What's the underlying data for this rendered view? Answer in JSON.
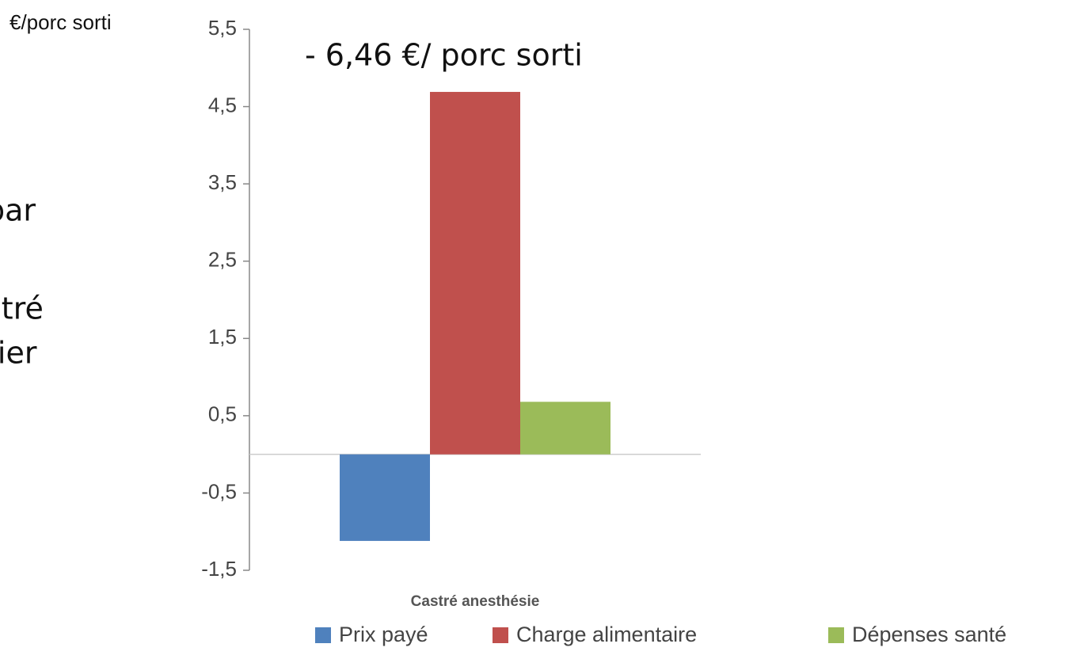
{
  "chart_data": {
    "type": "bar",
    "y_label": "€/porc sorti",
    "annotation": "- 6,46 €/ porc sorti",
    "side_text": [
      "par",
      "stré",
      "tier"
    ],
    "categories": [
      "Castré anesthésie"
    ],
    "series": [
      {
        "name": "Prix payé",
        "color": "#4f81bd",
        "values": [
          -1.12
        ]
      },
      {
        "name": "Charge alimentaire",
        "color": "#c0504d",
        "values": [
          4.69
        ]
      },
      {
        "name": "Dépenses santé",
        "color": "#9bbb59",
        "values": [
          0.68
        ]
      }
    ],
    "ylim": [
      -1.5,
      5.5
    ],
    "yticks": [
      {
        "value": -1.5,
        "label": "-1,5"
      },
      {
        "value": -0.5,
        "label": "-0,5"
      },
      {
        "value": 0.5,
        "label": "0,5"
      },
      {
        "value": 1.5,
        "label": "1,5"
      },
      {
        "value": 2.5,
        "label": "2,5"
      },
      {
        "value": 3.5,
        "label": "3,5"
      },
      {
        "value": 4.5,
        "label": "4,5"
      },
      {
        "value": 5.5,
        "label": "5,5"
      }
    ],
    "grid": false
  }
}
